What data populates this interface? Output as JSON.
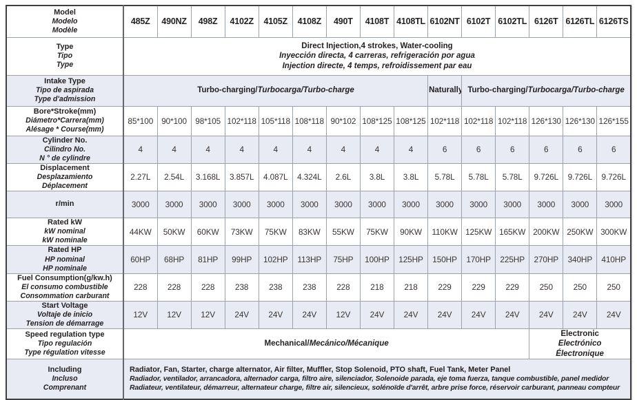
{
  "colors": {
    "row_shade": "#e8ebf4",
    "grid_line": "#9aa1ab",
    "outer_border": "#3f3f42",
    "label_divider": "#64666b",
    "text": "#231f20"
  },
  "header": {
    "label_lines": [
      "Model",
      "Modelo",
      "Modèle"
    ],
    "models": [
      "485Z",
      "490NZ",
      "498Z",
      "4102Z",
      "4105Z",
      "4108Z",
      "490T",
      "4108T",
      "4108TL",
      "6102NT",
      "6102T",
      "6102TL",
      "6126T",
      "6126TL",
      "6126TS"
    ]
  },
  "rows": [
    {
      "id": "type",
      "shaded": false,
      "label_lines": [
        "Type",
        "Tipo",
        "Type"
      ],
      "spans": [
        {
          "cols": 15,
          "lines": [
            [
              {
                "t": "Direct Injection,4 strokes, Water-cooling",
                "i": false
              }
            ],
            [
              {
                "t": "Inyección directa, 4 carreras, refrigeración por agua",
                "i": true
              }
            ],
            [
              {
                "t": "Injection directe, 4 temps, refroidissement par eau",
                "i": true
              }
            ]
          ]
        }
      ]
    },
    {
      "id": "intake",
      "shaded": true,
      "label_lines": [
        "Intake Type",
        "Tipo de aspirada",
        "Type d'admission"
      ],
      "spans": [
        {
          "cols": 9,
          "lines": [
            [
              {
                "t": "Turbo-charging/",
                "i": false
              },
              {
                "t": "Turbocarga/Turbo-charge",
                "i": true
              }
            ]
          ]
        },
        {
          "cols": 1,
          "lines": [
            [
              {
                "t": "Naturally",
                "i": false
              }
            ]
          ]
        },
        {
          "cols": 5,
          "lines": [
            [
              {
                "t": "Turbo-charging/",
                "i": false
              },
              {
                "t": "Turbocarga/Turbo-charge",
                "i": true
              }
            ]
          ]
        }
      ]
    },
    {
      "id": "bore",
      "shaded": false,
      "label_lines": [
        "Bore*Stroke(mm)",
        "Diámetro*Carrera(mm)",
        "Alésage * Course(mm)"
      ],
      "cells": [
        "85*100",
        "90*100",
        "98*105",
        "102*118",
        "105*118",
        "108*118",
        "90*102",
        "108*125",
        "108*125",
        "102*118",
        "102*118",
        "102*118",
        "126*130",
        "126*130",
        "126*155"
      ]
    },
    {
      "id": "cylinder",
      "shaded": true,
      "label_lines": [
        "Cylinder No.",
        "Cilindro No.",
        "N ° de cylindre"
      ],
      "cells": [
        "4",
        "4",
        "4",
        "4",
        "4",
        "4",
        "4",
        "4",
        "4",
        "6",
        "6",
        "6",
        "6",
        "6",
        "6"
      ]
    },
    {
      "id": "displacement",
      "shaded": false,
      "label_lines": [
        "Displacement",
        "Desplazamiento",
        "Déplacement"
      ],
      "cells": [
        "2.27L",
        "2.54L",
        "3.168L",
        "3.857L",
        "4.087L",
        "4.324L",
        "2.6L",
        "3.8L",
        "3.8L",
        "5.78L",
        "5.78L",
        "5.78L",
        "9.726L",
        "9.726L",
        "9.726L"
      ]
    },
    {
      "id": "rmin",
      "shaded": true,
      "label_lines": [
        "r/min"
      ],
      "cells": [
        "3000",
        "3000",
        "3000",
        "3000",
        "3000",
        "3000",
        "3000",
        "3000",
        "3000",
        "3000",
        "3000",
        "3000",
        "3000",
        "3000",
        "3000"
      ]
    },
    {
      "id": "kw",
      "shaded": false,
      "label_lines": [
        "Rated kW",
        "kW nominal",
        "kW nominale"
      ],
      "cells": [
        "44KW",
        "50KW",
        "60KW",
        "73KW",
        "75KW",
        "83KW",
        "55KW",
        "75KW",
        "90KW",
        "110KW",
        "125KW",
        "165KW",
        "200KW",
        "250KW",
        "300KW"
      ]
    },
    {
      "id": "hp",
      "shaded": true,
      "label_lines": [
        "Rated HP",
        "HP nominal",
        "HP nominale"
      ],
      "cells": [
        "60HP",
        "68HP",
        "81HP",
        "99HP",
        "102HP",
        "113HP",
        "75HP",
        "100HP",
        "125HP",
        "150HP",
        "170HP",
        "225HP",
        "270HP",
        "340HP",
        "410HP"
      ]
    },
    {
      "id": "fuel",
      "shaded": false,
      "label_lines": [
        "Fuel Consumption(g/kw.h)",
        "El consumo combustible",
        "Consommation carburant"
      ],
      "cells": [
        "228",
        "228",
        "228",
        "238",
        "238",
        "238",
        "228",
        "218",
        "218",
        "229",
        "229",
        "229",
        "250",
        "250",
        "250"
      ]
    },
    {
      "id": "voltage",
      "shaded": true,
      "label_lines": [
        "Start Voltage",
        "Voltaje de inicio",
        "Tension de démarrage"
      ],
      "cells": [
        "12V",
        "12V",
        "12V",
        "24V",
        "24V",
        "24V",
        "12V",
        "24V",
        "24V",
        "24V",
        "24V",
        "24V",
        "24V",
        "24V",
        "24V"
      ]
    },
    {
      "id": "speed",
      "shaded": false,
      "label_lines": [
        "Speed regulation type",
        "Tipo regulación",
        "Type régulation vitesse"
      ],
      "spans": [
        {
          "cols": 12,
          "lines": [
            [
              {
                "t": "Mechanical/",
                "i": false
              },
              {
                "t": "Mecánico/Mécanique",
                "i": true
              }
            ]
          ]
        },
        {
          "cols": 3,
          "lines": [
            [
              {
                "t": "Electronic",
                "i": false
              }
            ],
            [
              {
                "t": "Electrónico",
                "i": true
              }
            ],
            [
              {
                "t": "Électronique",
                "i": true
              }
            ]
          ]
        }
      ]
    },
    {
      "id": "including",
      "shaded": true,
      "label_lines": [
        "Including",
        "Incluso",
        "Comprenant"
      ],
      "spans": [
        {
          "cols": 15,
          "align": "left",
          "lines": [
            [
              {
                "t": "Radiator, Fan, Starter, charge alternator, Air filter, Muffler, Stop Solenoid, PTO shaft, Fuel Tank, Meter Panel",
                "i": false
              }
            ],
            [
              {
                "t": "Radiador, ventilador, arrancadora, alternador carga, filtro aire, silenciador, Solenoide parada, eje toma fuerza, tanque combustible, panel medidor",
                "i": true
              }
            ],
            [
              {
                "t": "Radiateur, ventilateur, démarreur, alternateur charge, filtre air, silencieux, solénoïde d'arrêt, arbre prise force, réservoir carburant, panneau compteur",
                "i": true
              }
            ]
          ]
        }
      ]
    }
  ]
}
